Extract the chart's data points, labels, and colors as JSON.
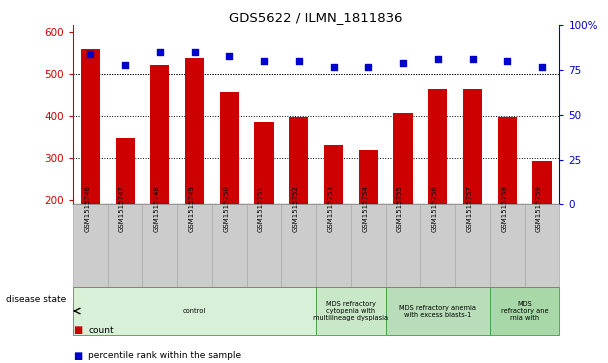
{
  "title": "GDS5622 / ILMN_1811836",
  "samples": [
    "GSM1515746",
    "GSM1515747",
    "GSM1515748",
    "GSM1515749",
    "GSM1515750",
    "GSM1515751",
    "GSM1515752",
    "GSM1515753",
    "GSM1515754",
    "GSM1515755",
    "GSM1515756",
    "GSM1515757",
    "GSM1515758",
    "GSM1515759"
  ],
  "counts": [
    558,
    348,
    520,
    537,
    458,
    385,
    398,
    332,
    320,
    408,
    465,
    465,
    398,
    293
  ],
  "percentiles": [
    84,
    78,
    85,
    85,
    83,
    80,
    80,
    77,
    77,
    79,
    81,
    81,
    80,
    77
  ],
  "bar_color": "#cc0000",
  "dot_color": "#0000cc",
  "ylim_left": [
    190,
    615
  ],
  "yticks_left": [
    200,
    300,
    400,
    500,
    600
  ],
  "ylim_right": [
    0,
    100
  ],
  "yticks_right": [
    0,
    25,
    50,
    75,
    100
  ],
  "grid_values": [
    300,
    400,
    500
  ],
  "disease_groups": [
    {
      "label": "control",
      "start": 0,
      "end": 7,
      "color": "#d8f0d8"
    },
    {
      "label": "MDS refractory\ncytopenia with\nmultilineage dysplasia",
      "start": 7,
      "end": 9,
      "color": "#c8e8c8"
    },
    {
      "label": "MDS refractory anemia\nwith excess blasts-1",
      "start": 9,
      "end": 12,
      "color": "#b8ddb8"
    },
    {
      "label": "MDS\nrefractory ane\nrnia with",
      "start": 12,
      "end": 14,
      "color": "#a8d8a8"
    }
  ],
  "disease_state_label": "disease state",
  "legend_count_label": "count",
  "legend_pct_label": "percentile rank within the sample",
  "bar_bottom": 190,
  "tick_bg_color": "#cccccc",
  "tick_edge_color": "#aaaaaa"
}
